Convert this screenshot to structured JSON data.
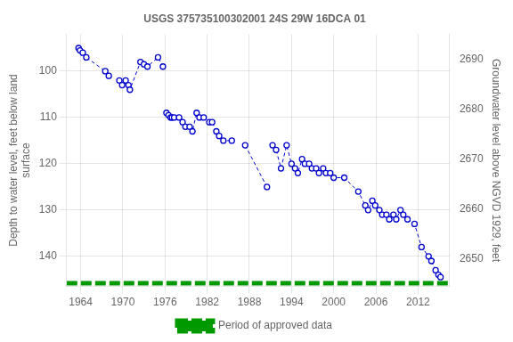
{
  "chart_data": {
    "type": "line",
    "title": "USGS 375735100302001 24S 29W 16DCA 01",
    "ylabel": "Depth to water level, feet below land\nsurface",
    "y2label": "Groundwater level above NGVD 1929, feet",
    "xlim": [
      1962.0,
      2016.5
    ],
    "xticks": [
      1964,
      1970,
      1976,
      1982,
      1988,
      1994,
      2000,
      2006,
      2012
    ],
    "ylim": [
      146.5,
      92.0
    ],
    "yticks": [
      100,
      110,
      120,
      130,
      140
    ],
    "y2lim": [
      2644.5,
      2695.0
    ],
    "y2ticks": [
      2650,
      2660,
      2670,
      2680,
      2690
    ],
    "grid": true,
    "legend": "bottom",
    "series": [
      {
        "color": "#0000cc",
        "marker": "circle",
        "line_style": "dashed",
        "x": [
          1963.7,
          1963.9,
          1964.3,
          1964.8,
          1967.5,
          1968.0
        ],
        "values": [
          95,
          95.5,
          96,
          97,
          100,
          101
        ]
      },
      {
        "color": "#0000cc",
        "marker": "circle",
        "line_style": "dashed",
        "x": [
          1969.5,
          1969.9,
          1970.4,
          1970.8,
          1971.0,
          1972.5,
          1973.0,
          1973.5,
          1975.0,
          1975.7
        ],
        "values": [
          102,
          103,
          102,
          103,
          104,
          98,
          98.5,
          99,
          97,
          99
        ]
      },
      {
        "color": "#0000cc",
        "marker": "circle",
        "line_style": "dashed",
        "x": [
          1976.2,
          1976.5,
          1976.8,
          1977.0,
          1977.3,
          1978.0,
          1978.5,
          1978.9,
          1979.5,
          1979.9,
          1980.5,
          1980.9,
          1981.5,
          1982.3,
          1982.7,
          1983.3,
          1983.7,
          1984.3,
          1985.5
        ],
        "values": [
          109,
          109.5,
          110,
          110,
          110,
          110,
          111,
          112,
          112,
          113,
          109,
          110,
          110,
          111,
          111,
          113,
          114,
          115,
          115
        ]
      },
      {
        "color": "#0000cc",
        "marker": "circle",
        "line_style": "dashed",
        "x": [
          1987.4,
          1990.5
        ],
        "values": [
          116,
          125
        ]
      },
      {
        "color": "#0000cc",
        "marker": "circle",
        "line_style": "dashed",
        "x": [
          1991.3,
          1991.8,
          1992.5,
          1993.3,
          1994.0,
          1994.5,
          1994.9,
          1995.5,
          1995.9,
          1996.5,
          1996.9,
          1997.5,
          1997.9,
          1998.5,
          1998.9,
          1999.5,
          2000.0,
          2001.5,
          2003.5,
          2004.5,
          2004.9,
          2005.5,
          2005.9,
          2006.5,
          2006.9,
          2007.5,
          2007.9,
          2008.5,
          2008.9,
          2009.5,
          2009.9,
          2010.5,
          2011.5,
          2012.5,
          2013.5,
          2013.9,
          2014.5,
          2014.9,
          2015.2
        ],
        "values": [
          116,
          117,
          121,
          116,
          120,
          121,
          122,
          119,
          120,
          120,
          121,
          121,
          122,
          121,
          122,
          122,
          123,
          123,
          126,
          129,
          130,
          128,
          129,
          130,
          131,
          131,
          132,
          131,
          132,
          130,
          131,
          132,
          133,
          138,
          140,
          141,
          143,
          144,
          144.5
        ]
      },
      {
        "name": "Period of approved data",
        "color": "#009900",
        "line_style": "dashed",
        "x": [
          1962.0,
          2016.5
        ],
        "values": [
          145.8,
          145.8
        ]
      }
    ]
  }
}
